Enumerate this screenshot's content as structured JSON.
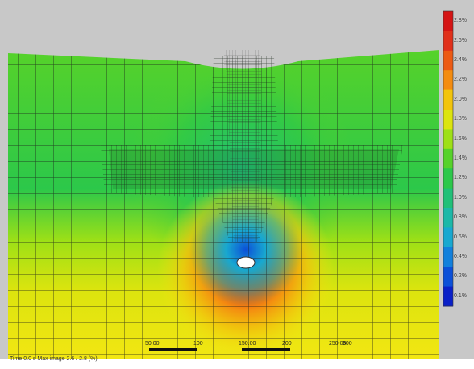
{
  "image": {
    "subject": "finite-element mesh contour plot of a ground deformation field",
    "background": "#c8c8c8"
  },
  "legend": {
    "title": "...",
    "labels": [
      "0.1%",
      "0.2%",
      "0.4%",
      "0.6%",
      "0.8%",
      "1.0%",
      "1.2%",
      "1.4%",
      "1.6%",
      "1.8%",
      "2.0%",
      "2.2%",
      "2.4%",
      "2.6%",
      "2.8%"
    ],
    "colors": [
      "#d41414",
      "#e0301a",
      "#ec5a14",
      "#f48c10",
      "#f2c40c",
      "#dce40e",
      "#9ee016",
      "#56d22a",
      "#2cc84a",
      "#20c078",
      "#1cb8a8",
      "#18a8d0",
      "#1280dc",
      "#0c50d8",
      "#0a20c8"
    ]
  },
  "scale_bar": {
    "labels": [
      "50.00",
      "100",
      "150.00",
      "200",
      "250.00",
      "300"
    ]
  },
  "footer": {
    "text": "Time 0.0 s   Max image 2.6 / 2.8 (%)"
  }
}
